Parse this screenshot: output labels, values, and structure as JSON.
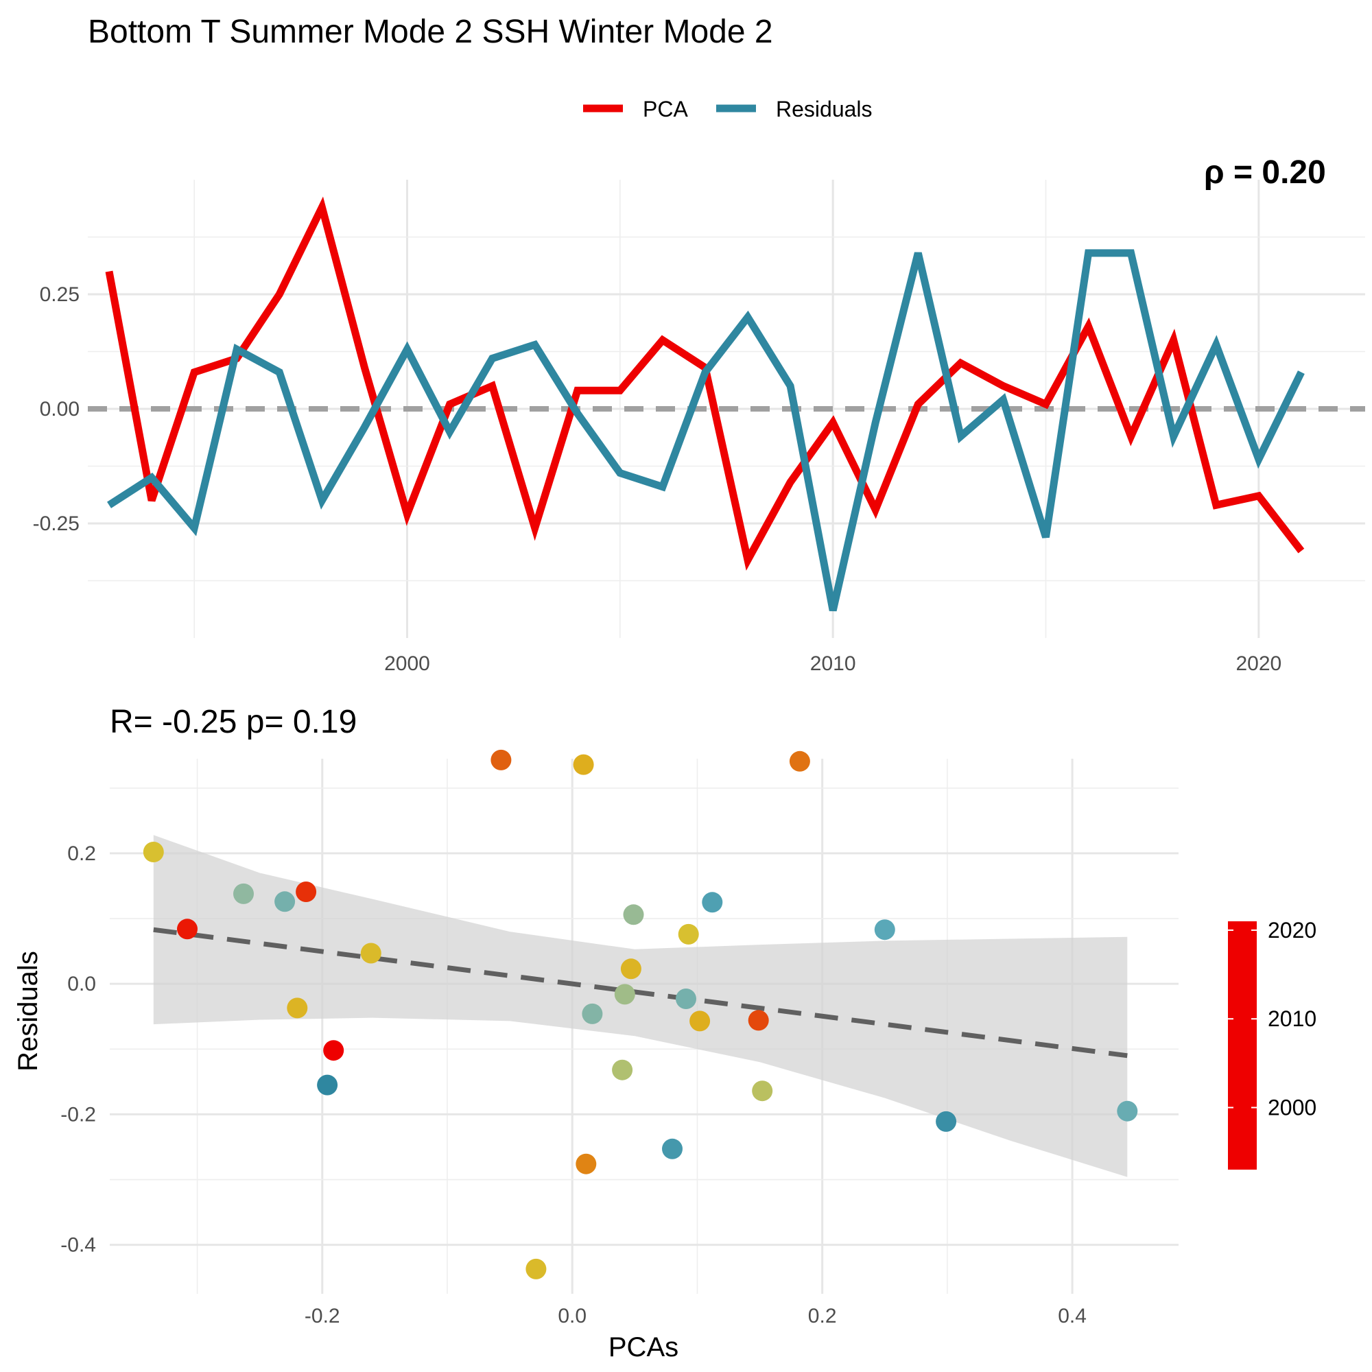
{
  "title": "Bottom T Summer Mode 2 SSH Winter Mode 2",
  "clipped_annotation": "ρ = 0.20",
  "chart_data": [
    {
      "type": "line",
      "title": "",
      "xlabel": "",
      "ylabel": "",
      "x_ticks": [
        "2000",
        "2010",
        "2020"
      ],
      "y_ticks": [
        "0.25",
        "0.00",
        "-0.25"
      ],
      "xlim": [
        1992.5,
        2022.5
      ],
      "ylim": [
        -0.5,
        0.5
      ],
      "grid": true,
      "legend_position": "top",
      "x": [
        1993,
        1994,
        1995,
        1996,
        1997,
        1998,
        1999,
        2000,
        2001,
        2002,
        2003,
        2004,
        2005,
        2006,
        2007,
        2008,
        2009,
        2010,
        2011,
        2012,
        2013,
        2014,
        2015,
        2016,
        2017,
        2018,
        2019,
        2020,
        2021
      ],
      "series": [
        {
          "name": "PCA",
          "color": "#ee0000",
          "values": [
            0.3,
            -0.2,
            0.08,
            0.11,
            0.25,
            0.44,
            0.09,
            -0.23,
            0.01,
            0.05,
            -0.26,
            0.04,
            0.04,
            0.15,
            0.09,
            -0.33,
            -0.16,
            -0.03,
            -0.22,
            0.01,
            0.1,
            0.05,
            0.01,
            0.18,
            -0.06,
            0.15,
            -0.21,
            -0.19,
            -0.31
          ]
        },
        {
          "name": "Residuals",
          "color": "#2f87a0",
          "values": [
            -0.21,
            -0.15,
            -0.26,
            0.13,
            0.08,
            -0.2,
            -0.04,
            0.13,
            -0.05,
            0.11,
            0.14,
            -0.01,
            -0.14,
            -0.17,
            0.08,
            0.2,
            0.05,
            -0.44,
            -0.03,
            0.34,
            -0.06,
            0.02,
            -0.28,
            0.34,
            0.34,
            -0.06,
            0.14,
            -0.11,
            0.08
          ]
        }
      ],
      "reference_line": {
        "y": 0,
        "style": "dashed",
        "color": "#a0a0a0"
      }
    },
    {
      "type": "scatter",
      "title": "R= -0.25  p= 0.19",
      "xlabel": "PCAs",
      "ylabel": "Residuals",
      "x_ticks": [
        "-0.2",
        "0.0",
        "0.2",
        "0.4"
      ],
      "y_ticks": [
        "0.2",
        "0.0",
        "-0.2",
        "-0.4"
      ],
      "xlim": [
        -0.37,
        0.485
      ],
      "ylim": [
        -0.475,
        0.345
      ],
      "grid": true,
      "color_scale": {
        "title": "",
        "labels": [
          "2020",
          "2010",
          "2000"
        ],
        "range": [
          1993,
          2021
        ],
        "colors": [
          "#ee0000",
          "#e06010",
          "#e0a818",
          "#d8c030",
          "#b0c070",
          "#90b8a0",
          "#5aa8b8",
          "#2f87a0"
        ]
      },
      "points": [
        {
          "x": -0.335,
          "y": 0.202,
          "year": 2009
        },
        {
          "x": -0.308,
          "y": 0.084,
          "year": 2020
        },
        {
          "x": -0.263,
          "y": 0.138,
          "year": 2001
        },
        {
          "x": -0.23,
          "y": 0.126,
          "year": 1999
        },
        {
          "x": -0.213,
          "y": 0.141,
          "year": 2019
        },
        {
          "x": -0.22,
          "y": -0.037,
          "year": 2011
        },
        {
          "x": -0.161,
          "y": 0.047,
          "year": 2010
        },
        {
          "x": -0.191,
          "y": -0.102,
          "year": 2021
        },
        {
          "x": -0.196,
          "y": -0.155,
          "year": 1993
        },
        {
          "x": -0.057,
          "y": 0.343,
          "year": 2017
        },
        {
          "x": 0.009,
          "y": 0.336,
          "year": 2012
        },
        {
          "x": 0.182,
          "y": 0.341,
          "year": 2016
        },
        {
          "x": 0.049,
          "y": 0.106,
          "year": 2002
        },
        {
          "x": 0.112,
          "y": 0.125,
          "year": 1996
        },
        {
          "x": 0.093,
          "y": 0.076,
          "year": 2009
        },
        {
          "x": 0.047,
          "y": 0.023,
          "year": 2011
        },
        {
          "x": 0.042,
          "y": -0.016,
          "year": 2003
        },
        {
          "x": 0.091,
          "y": -0.023,
          "year": 1999
        },
        {
          "x": 0.016,
          "y": -0.046,
          "year": 2000
        },
        {
          "x": 0.102,
          "y": -0.057,
          "year": 2012
        },
        {
          "x": 0.149,
          "y": -0.056,
          "year": 2018
        },
        {
          "x": 0.04,
          "y": -0.132,
          "year": 2005
        },
        {
          "x": 0.152,
          "y": -0.164,
          "year": 2006
        },
        {
          "x": 0.25,
          "y": 0.083,
          "year": 1997
        },
        {
          "x": 0.299,
          "y": -0.211,
          "year": 1994
        },
        {
          "x": 0.444,
          "y": -0.195,
          "year": 1998
        },
        {
          "x": 0.08,
          "y": -0.253,
          "year": 1995
        },
        {
          "x": 0.011,
          "y": -0.276,
          "year": 2015
        },
        {
          "x": -0.029,
          "y": -0.437,
          "year": 2010
        }
      ],
      "fit_line": {
        "x": [
          -0.335,
          0.444
        ],
        "y": [
          0.083,
          -0.11
        ],
        "style": "dashed",
        "color": "#606060"
      },
      "confidence_band": {
        "x": [
          -0.335,
          -0.25,
          -0.16,
          -0.05,
          0.05,
          0.15,
          0.25,
          0.35,
          0.444
        ],
        "upper": [
          0.228,
          0.17,
          0.13,
          0.08,
          0.053,
          0.06,
          0.066,
          0.069,
          0.072
        ],
        "lower": [
          -0.062,
          -0.055,
          -0.052,
          -0.057,
          -0.08,
          -0.12,
          -0.175,
          -0.24,
          -0.296
        ]
      }
    }
  ]
}
